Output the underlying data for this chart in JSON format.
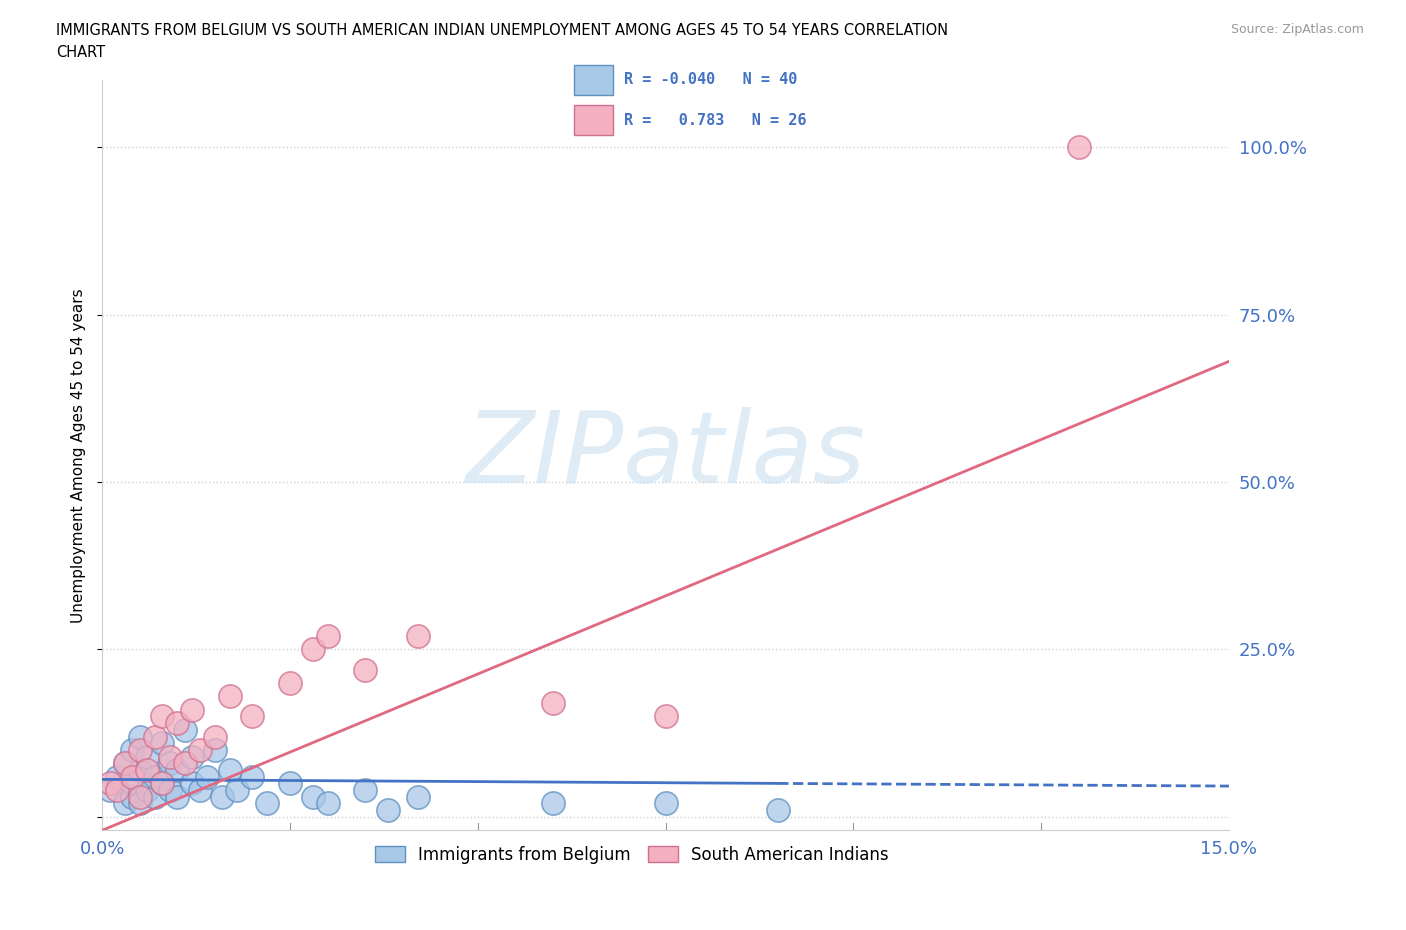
{
  "title_line1": "IMMIGRANTS FROM BELGIUM VS SOUTH AMERICAN INDIAN UNEMPLOYMENT AMONG AGES 45 TO 54 YEARS CORRELATION",
  "title_line2": "CHART",
  "source": "Source: ZipAtlas.com",
  "ylabel": "Unemployment Among Ages 45 to 54 years",
  "xlim": [
    0.0,
    0.15
  ],
  "ylim": [
    -0.02,
    1.1
  ],
  "ytick_positions": [
    0.0,
    0.25,
    0.5,
    0.75,
    1.0
  ],
  "ytick_labels": [
    "",
    "25.0%",
    "50.0%",
    "75.0%",
    "100.0%"
  ],
  "grid_color": "#d0d0d0",
  "background_color": "#ffffff",
  "watermark": "ZIPatlas",
  "legend_color": "#4472c4",
  "series1_color": "#a8c8e8",
  "series1_edge": "#6090c0",
  "series2_color": "#f4b0c0",
  "series2_edge": "#d07090",
  "trend1_color": "#4472c4",
  "trend2_color": "#e06880",
  "belgium_x": [
    0.001,
    0.002,
    0.003,
    0.003,
    0.004,
    0.004,
    0.004,
    0.005,
    0.005,
    0.005,
    0.006,
    0.006,
    0.007,
    0.007,
    0.008,
    0.008,
    0.009,
    0.009,
    0.01,
    0.01,
    0.011,
    0.012,
    0.012,
    0.013,
    0.014,
    0.015,
    0.016,
    0.017,
    0.018,
    0.02,
    0.022,
    0.025,
    0.028,
    0.03,
    0.035,
    0.038,
    0.042,
    0.06,
    0.075,
    0.09
  ],
  "belgium_y": [
    0.04,
    0.06,
    0.02,
    0.08,
    0.03,
    0.05,
    0.1,
    0.02,
    0.07,
    0.12,
    0.04,
    0.09,
    0.03,
    0.06,
    0.05,
    0.11,
    0.04,
    0.08,
    0.03,
    0.07,
    0.13,
    0.05,
    0.09,
    0.04,
    0.06,
    0.1,
    0.03,
    0.07,
    0.04,
    0.06,
    0.02,
    0.05,
    0.03,
    0.02,
    0.04,
    0.01,
    0.03,
    0.02,
    0.02,
    0.01
  ],
  "indian_x": [
    0.001,
    0.002,
    0.003,
    0.004,
    0.005,
    0.005,
    0.006,
    0.007,
    0.008,
    0.008,
    0.009,
    0.01,
    0.011,
    0.012,
    0.013,
    0.015,
    0.017,
    0.02,
    0.025,
    0.028,
    0.03,
    0.035,
    0.042,
    0.06,
    0.075,
    0.13
  ],
  "indian_y": [
    0.05,
    0.04,
    0.08,
    0.06,
    0.03,
    0.1,
    0.07,
    0.12,
    0.05,
    0.15,
    0.09,
    0.14,
    0.08,
    0.16,
    0.1,
    0.12,
    0.18,
    0.15,
    0.2,
    0.25,
    0.27,
    0.22,
    0.27,
    0.17,
    0.15,
    1.0
  ],
  "bel_trend_x": [
    0.0,
    0.15
  ],
  "bel_trend_y": [
    0.055,
    0.045
  ],
  "ind_trend_x": [
    0.0,
    0.15
  ],
  "ind_trend_y": [
    -0.02,
    0.68
  ]
}
